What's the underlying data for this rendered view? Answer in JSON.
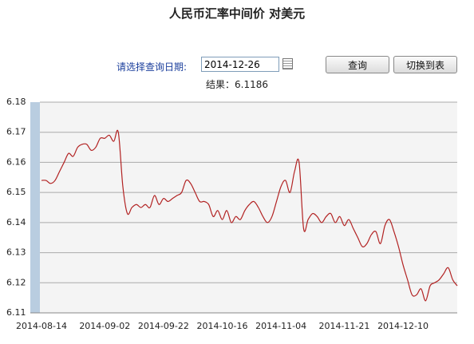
{
  "header": {
    "title": "人民币汇率中间价  对美元"
  },
  "form": {
    "date_label": "请选择查询日期:",
    "date_value": "2014-12-26",
    "query_button": "查询",
    "switch_button": "切换到表",
    "result_label": "结果：",
    "result_value": "6.1186"
  },
  "chart_data": {
    "type": "line",
    "categories": [
      "2014-08-14",
      null,
      null,
      null,
      null,
      null,
      null,
      null,
      null,
      null,
      null,
      null,
      null,
      null,
      "2014-09-02",
      null,
      null,
      null,
      null,
      null,
      null,
      null,
      null,
      null,
      null,
      null,
      null,
      "2014-09-22",
      null,
      null,
      null,
      null,
      null,
      null,
      null,
      null,
      null,
      null,
      null,
      null,
      "2014-10-16",
      null,
      null,
      null,
      null,
      null,
      null,
      null,
      null,
      null,
      null,
      null,
      null,
      "2014-11-04",
      null,
      null,
      null,
      null,
      null,
      null,
      null,
      null,
      null,
      null,
      null,
      null,
      null,
      "2014-11-21",
      null,
      null,
      null,
      null,
      null,
      null,
      null,
      null,
      null,
      null,
      null,
      null,
      "2014-12-10",
      null,
      null,
      null,
      null,
      null,
      null,
      null,
      null,
      null,
      null,
      null,
      null
    ],
    "series": [
      {
        "name": "人民币汇率中间价",
        "color": "#b22222",
        "values": [
          6.154,
          6.154,
          6.153,
          6.154,
          6.157,
          6.16,
          6.163,
          6.162,
          6.165,
          6.166,
          6.166,
          6.164,
          6.165,
          6.168,
          6.168,
          6.169,
          6.167,
          6.17,
          6.152,
          6.143,
          6.145,
          6.146,
          6.145,
          6.146,
          6.145,
          6.149,
          6.146,
          6.148,
          6.147,
          6.148,
          6.149,
          6.15,
          6.154,
          6.153,
          6.15,
          6.147,
          6.147,
          6.146,
          6.142,
          6.144,
          6.141,
          6.144,
          6.14,
          6.142,
          6.141,
          6.144,
          6.146,
          6.147,
          6.145,
          6.142,
          6.14,
          6.142,
          6.147,
          6.152,
          6.154,
          6.15,
          6.157,
          6.16,
          6.138,
          6.141,
          6.143,
          6.142,
          6.14,
          6.142,
          6.143,
          6.14,
          6.142,
          6.139,
          6.141,
          6.138,
          6.135,
          6.132,
          6.133,
          6.136,
          6.137,
          6.133,
          6.139,
          6.141,
          6.137,
          6.132,
          6.126,
          6.121,
          6.116,
          6.116,
          6.118,
          6.114,
          6.119,
          6.12,
          6.121,
          6.123,
          6.125,
          6.121,
          6.119
        ]
      }
    ],
    "ylim": [
      6.11,
      6.18
    ],
    "yticks": [
      6.11,
      6.12,
      6.13,
      6.14,
      6.15,
      6.16,
      6.17,
      6.18
    ],
    "grid": true
  }
}
